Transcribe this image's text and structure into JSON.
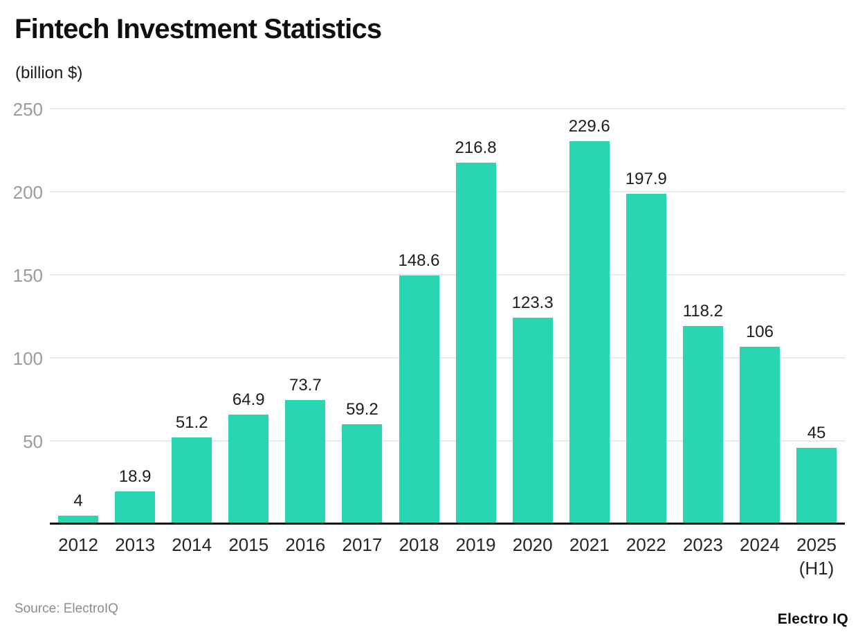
{
  "header": {
    "title": "Fintech Investment Statistics",
    "subtitle": "(billion $)"
  },
  "footer": {
    "source": "Source: ElectroIQ",
    "brand": "Electro IQ"
  },
  "colors": {
    "bar": "#2AD5B1",
    "grid": "#E8E8E8",
    "axis": "#141414",
    "ytick_text": "#9B9B9B",
    "value_label_text": "#1D1D1D",
    "xlabel_text": "#262626",
    "source_text": "#8D8D8D",
    "title_text": "#0F0F0F"
  },
  "chart_data": {
    "type": "bar",
    "title": "Fintech Investment Statistics",
    "subtitle": "(billion $)",
    "ylabel": "",
    "xlabel": "",
    "ylim": [
      0,
      250
    ],
    "yticks": [
      50,
      100,
      150,
      200,
      250
    ],
    "grid": true,
    "legend": false,
    "value_labels": true,
    "categories": [
      "2012",
      "2013",
      "2014",
      "2015",
      "2016",
      "2017",
      "2018",
      "2019",
      "2020",
      "2021",
      "2022",
      "2023",
      "2024",
      "2025 (H1)"
    ],
    "points": [
      {
        "category": "2012",
        "sublabel": "",
        "value": 4,
        "label": "4"
      },
      {
        "category": "2013",
        "sublabel": "",
        "value": 18.9,
        "label": "18.9"
      },
      {
        "category": "2014",
        "sublabel": "",
        "value": 51.2,
        "label": "51.2"
      },
      {
        "category": "2015",
        "sublabel": "",
        "value": 64.9,
        "label": "64.9"
      },
      {
        "category": "2016",
        "sublabel": "",
        "value": 73.7,
        "label": "73.7"
      },
      {
        "category": "2017",
        "sublabel": "",
        "value": 59.2,
        "label": "59.2"
      },
      {
        "category": "2018",
        "sublabel": "",
        "value": 148.6,
        "label": "148.6"
      },
      {
        "category": "2019",
        "sublabel": "",
        "value": 216.8,
        "label": "216.8"
      },
      {
        "category": "2020",
        "sublabel": "",
        "value": 123.3,
        "label": "123.3"
      },
      {
        "category": "2021",
        "sublabel": "",
        "value": 229.6,
        "label": "229.6"
      },
      {
        "category": "2022",
        "sublabel": "",
        "value": 197.9,
        "label": "197.9"
      },
      {
        "category": "2023",
        "sublabel": "",
        "value": 118.2,
        "label": "118.2"
      },
      {
        "category": "2024",
        "sublabel": "",
        "value": 106,
        "label": "106"
      },
      {
        "category": "2025",
        "sublabel": "(H1)",
        "value": 45,
        "label": "45"
      }
    ]
  }
}
